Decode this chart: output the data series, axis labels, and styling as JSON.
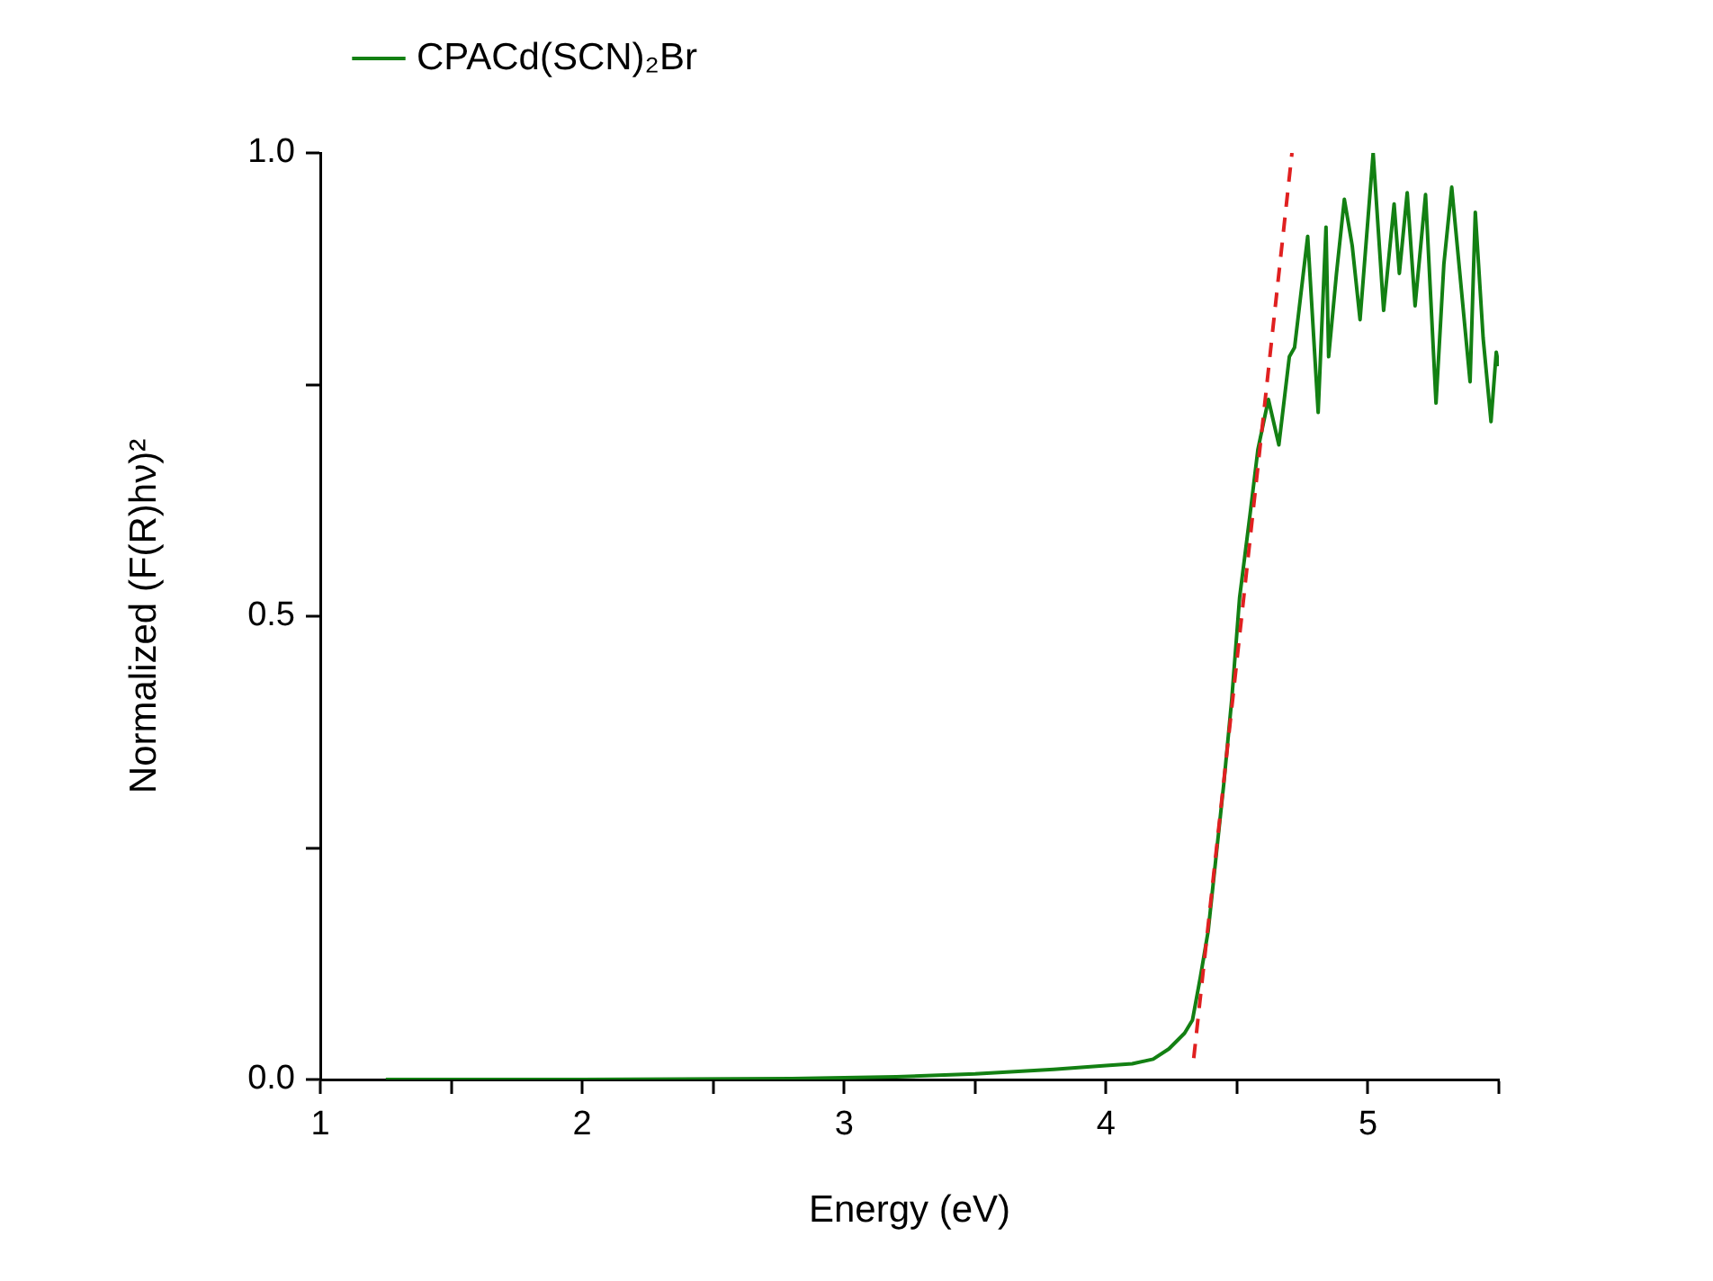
{
  "chart_data": {
    "type": "line",
    "xlabel": "Energy (eV)",
    "ylabel": "Normalized (F(R)hν)²",
    "xlim": [
      1,
      5.5
    ],
    "xticks": [
      1,
      {
        "value": 1.5,
        "label": null
      },
      2,
      {
        "value": 2.5,
        "label": null
      },
      3,
      {
        "value": 3.5,
        "label": null
      },
      4,
      {
        "value": 4.5,
        "label": null
      },
      5,
      {
        "value": 5.5,
        "label": null
      }
    ],
    "ylim": [
      0,
      1
    ],
    "yticks": [
      {
        "value": 0,
        "label": "0.0"
      },
      {
        "value": 0.25,
        "label": null
      },
      {
        "value": 0.5,
        "label": "0.5"
      },
      {
        "value": 0.75,
        "label": null
      },
      {
        "value": 1,
        "label": "1.0"
      }
    ],
    "grid": false,
    "legend": "top left",
    "marker": "none",
    "series": [
      {
        "name": "CPACd(SCN)₂Br",
        "color": "#138013",
        "line_style": "solid",
        "x": [
          1.25,
          2.0,
          2.8,
          3.2,
          3.5,
          3.8,
          4.0,
          4.1,
          4.18,
          4.24,
          4.3,
          4.33,
          4.36,
          4.39,
          4.45,
          4.48,
          4.51,
          4.55,
          4.58,
          4.62,
          4.66,
          4.7,
          4.72,
          4.77,
          4.81,
          4.84,
          4.85,
          4.88,
          4.91,
          4.94,
          4.97,
          5.02,
          5.06,
          5.1,
          5.12,
          5.15,
          5.18,
          5.22,
          5.26,
          5.29,
          5.32,
          5.39,
          5.41,
          5.44,
          5.47,
          5.49,
          5.5
        ],
        "values": [
          0,
          0,
          0.001,
          0.003,
          0.006,
          0.011,
          0.015,
          0.017,
          0.022,
          0.033,
          0.05,
          0.064,
          0.11,
          0.16,
          0.32,
          0.41,
          0.52,
          0.61,
          0.68,
          0.734,
          0.685,
          0.78,
          0.79,
          0.91,
          0.72,
          0.92,
          0.78,
          0.87,
          0.95,
          0.9,
          0.82,
          1.0,
          0.83,
          0.945,
          0.87,
          0.957,
          0.835,
          0.955,
          0.73,
          0.88,
          0.963,
          0.753,
          0.936,
          0.8,
          0.71,
          0.785,
          0.77
        ]
      },
      {
        "type": "line",
        "color": "#e02020",
        "line_style": "dashed",
        "x": [
          4.335,
          4.71
        ],
        "values": [
          0.023,
          1.0
        ]
      }
    ]
  }
}
